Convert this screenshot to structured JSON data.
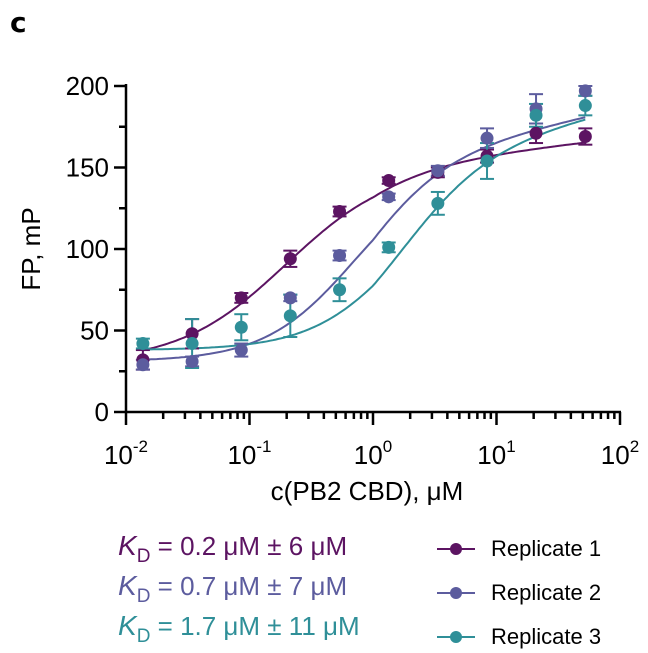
{
  "panel_label": "c",
  "chart_data": {
    "type": "scatter",
    "title": "",
    "xlabel": "c(PB2 CBD), μM",
    "ylabel": "FP, mP",
    "xscale": "log",
    "xlim": [
      0.01,
      100
    ],
    "ylim": [
      0,
      200
    ],
    "xticks": [
      {
        "base": "10",
        "exp": "-2",
        "value": 0.01
      },
      {
        "base": "10",
        "exp": "-1",
        "value": 0.1
      },
      {
        "base": "10",
        "exp": "0",
        "value": 1
      },
      {
        "base": "10",
        "exp": "1",
        "value": 10
      },
      {
        "base": "10",
        "exp": "2",
        "value": 100
      }
    ],
    "yticks": [
      "0",
      "50",
      "100",
      "150",
      "200"
    ],
    "legend_position": "bottom-right",
    "x": [
      0.0137,
      0.0343,
      0.0858,
      0.214,
      0.536,
      1.34,
      3.35,
      8.38,
      20.9,
      52.4
    ],
    "series": [
      {
        "name": "Replicate 1",
        "color": "#5c1462",
        "y": [
          32,
          48,
          70,
          94,
          123,
          142,
          147,
          157,
          171,
          169
        ],
        "err": [
          6,
          9,
          3,
          5,
          3,
          2,
          3,
          4,
          6,
          5
        ],
        "fit": {
          "bottom": 30,
          "top": 152,
          "ec50": 0.2,
          "hill": 1.0,
          "linear_slope": 8
        },
        "kd_text": "= 0.2 μM ± 6 μM"
      },
      {
        "name": "Replicate 2",
        "color": "#5c5c9e",
        "y": [
          29,
          31,
          38,
          70,
          96,
          132,
          148,
          168,
          186,
          197
        ],
        "err": [
          3,
          3,
          4,
          2,
          3,
          2,
          3,
          6,
          9,
          3
        ],
        "fit": {
          "bottom": 31,
          "top": 154,
          "ec50": 0.7,
          "hill": 1.2,
          "linear_slope": 16
        },
        "kd_text": "= 0.7 μM ± 7 μM"
      },
      {
        "name": "Replicate 3",
        "color": "#2f8f98",
        "y": [
          42,
          42,
          52,
          59,
          75,
          101,
          128,
          154,
          182,
          188
        ],
        "err": [
          3,
          15,
          8,
          13,
          7,
          3,
          7,
          11,
          7,
          6
        ],
        "fit": {
          "bottom": 38,
          "top": 152,
          "ec50": 1.7,
          "hill": 1.2,
          "linear_slope": 17
        },
        "kd_text": "= 1.7 μM ± 11 μM"
      }
    ]
  },
  "kd_symbol": "K",
  "kd_subscript": "D"
}
